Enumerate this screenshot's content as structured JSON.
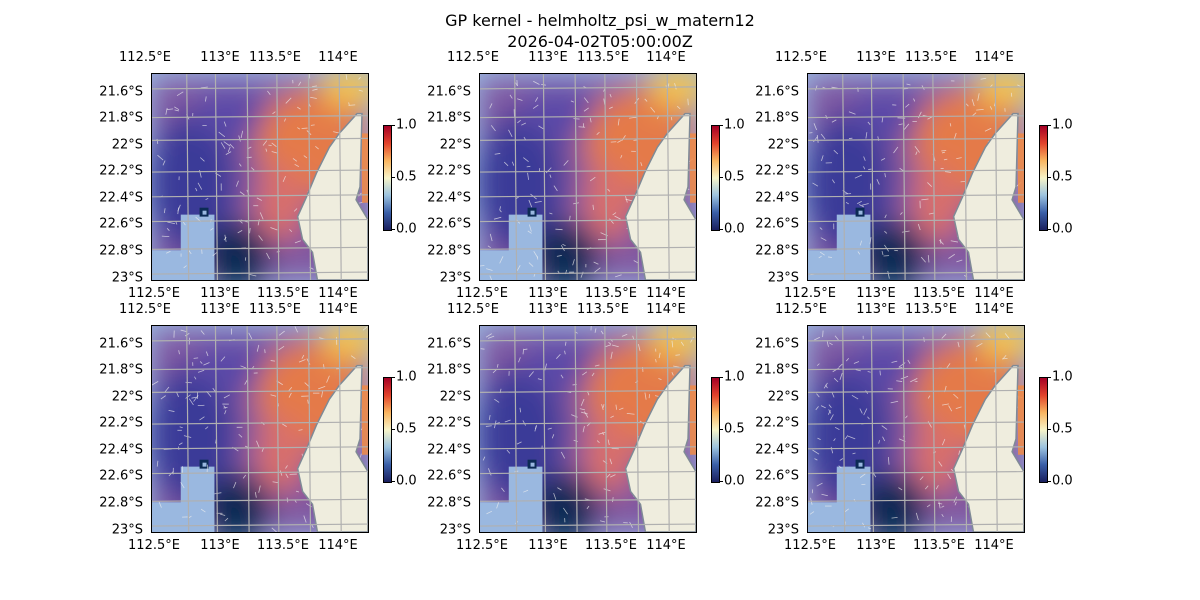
{
  "title": "GP kernel - helmholtz_psi_w_matern12",
  "subtitle": "2026-04-02T05:00:00Z",
  "panel_count": 6,
  "axes": {
    "top_lon_labels": [
      "112.5°E",
      "113°E",
      "113.5°E",
      "114°E"
    ],
    "bottom_lon_labels": [
      "112.5°E",
      "113°E",
      "113.5°E",
      "114°E"
    ],
    "lat_labels": [
      "21.6°S",
      "21.8°S",
      "22°S",
      "22.2°S",
      "22.4°S",
      "22.6°S",
      "22.8°S",
      "23°S"
    ]
  },
  "colorbar": {
    "ticks": [
      "1.0",
      "0.5",
      "0.0"
    ],
    "range": [
      0,
      1
    ]
  },
  "colors": {
    "land": "#efedde",
    "ocean": "#9ab8e0",
    "coast": "#7f8a96",
    "grid": "#b0b0b0"
  }
}
